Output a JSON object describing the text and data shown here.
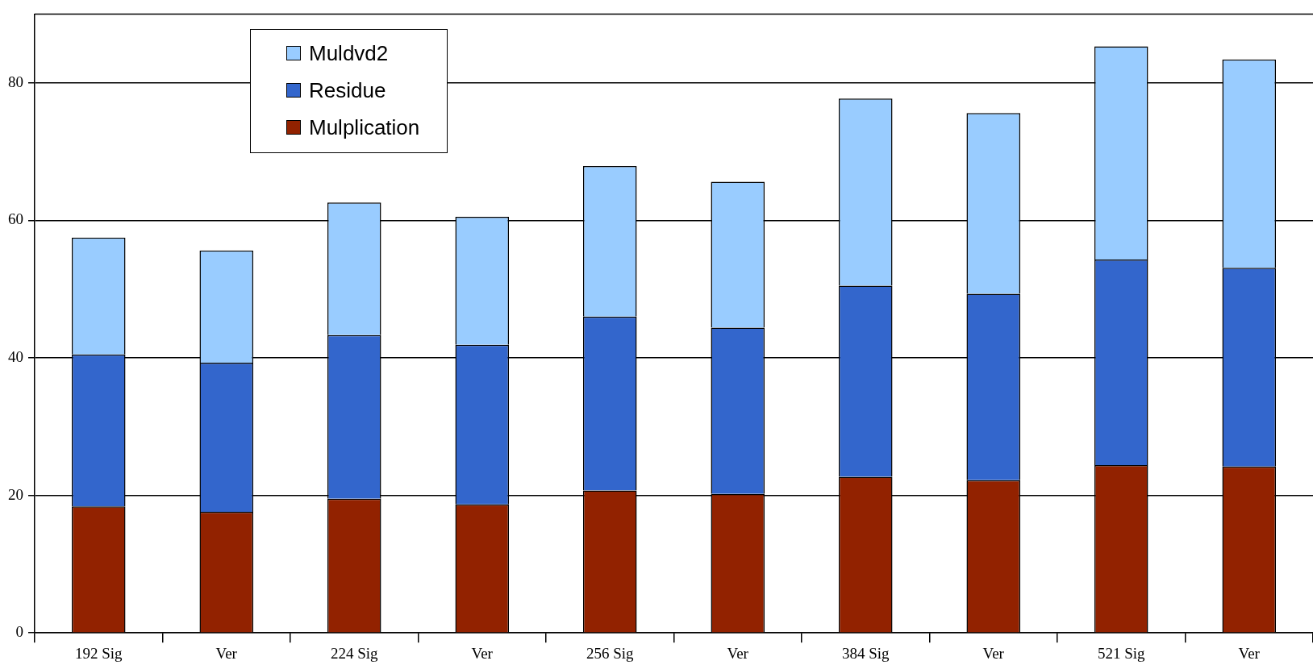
{
  "chart_data": {
    "type": "bar",
    "stacked": true,
    "categories": [
      "192 Sig",
      "Ver",
      "224 Sig",
      "Ver",
      "256 Sig",
      "Ver",
      "384 Sig",
      "Ver",
      "521 Sig",
      "Ver"
    ],
    "series": [
      {
        "name": "Mulplication",
        "color": "#922200",
        "values": [
          18.4,
          17.6,
          19.5,
          18.7,
          20.7,
          20.2,
          22.7,
          22.2,
          24.4,
          24.2
        ]
      },
      {
        "name": "Residue",
        "color": "#3366cc",
        "values": [
          22.1,
          21.7,
          23.8,
          23.2,
          25.3,
          24.2,
          27.8,
          27.1,
          29.9,
          28.9
        ]
      },
      {
        "name": "Muldvd2",
        "color": "#99ccff",
        "values": [
          17.0,
          16.3,
          19.3,
          18.6,
          21.9,
          21.2,
          27.2,
          26.3,
          31.0,
          30.3
        ]
      }
    ],
    "ylim": [
      0,
      90
    ],
    "yticks": [
      0,
      20,
      40,
      60,
      80
    ],
    "grid": "y",
    "legend": "top left"
  }
}
